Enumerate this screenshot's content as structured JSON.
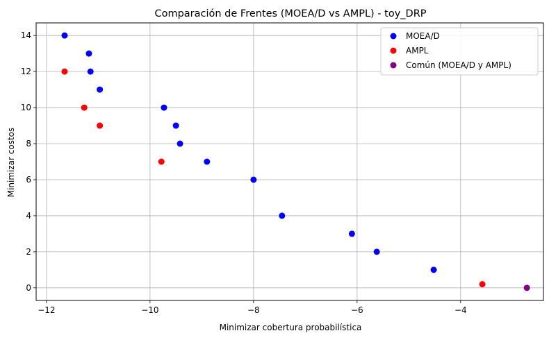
{
  "chart_data": {
    "type": "scatter",
    "title": "Comparación de Frentes (MOEA/D vs AMPL) - toy_DRP",
    "xlabel": "Minimizar cobertura probabilística",
    "ylabel": "Minimizar costos",
    "xlim": [
      -12.2,
      -2.4
    ],
    "ylim": [
      -0.7,
      14.7
    ],
    "xticks": [
      -12,
      -10,
      -8,
      -6,
      -4
    ],
    "yticks": [
      0,
      2,
      4,
      6,
      8,
      10,
      12,
      14
    ],
    "grid": true,
    "legend_position": "top-right",
    "series": [
      {
        "name": "MOEA/D",
        "color": "#0000ff",
        "points": [
          {
            "x": -11.65,
            "y": 14
          },
          {
            "x": -11.18,
            "y": 13
          },
          {
            "x": -11.15,
            "y": 12
          },
          {
            "x": -10.97,
            "y": 11
          },
          {
            "x": -9.73,
            "y": 10
          },
          {
            "x": -9.5,
            "y": 9
          },
          {
            "x": -9.42,
            "y": 8
          },
          {
            "x": -8.9,
            "y": 7
          },
          {
            "x": -8.0,
            "y": 6
          },
          {
            "x": -7.45,
            "y": 4
          },
          {
            "x": -6.1,
            "y": 3
          },
          {
            "x": -5.62,
            "y": 2
          },
          {
            "x": -4.52,
            "y": 1
          }
        ]
      },
      {
        "name": "AMPL",
        "color": "#ff0000",
        "points": [
          {
            "x": -11.65,
            "y": 12
          },
          {
            "x": -11.27,
            "y": 10
          },
          {
            "x": -10.97,
            "y": 9
          },
          {
            "x": -9.78,
            "y": 7
          },
          {
            "x": -3.58,
            "y": 0.2
          }
        ]
      },
      {
        "name": "Común (MOEA/D y AMPL)",
        "color": "#800080",
        "points": [
          {
            "x": -2.72,
            "y": 0
          }
        ]
      }
    ]
  }
}
